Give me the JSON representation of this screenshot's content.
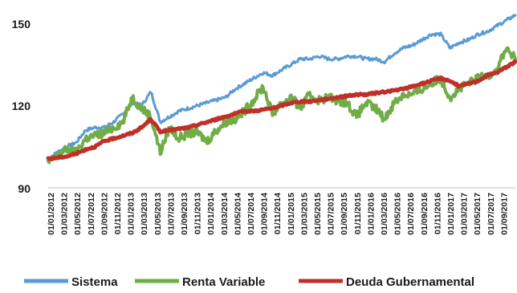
{
  "chart_data": {
    "type": "line",
    "title": "",
    "xlabel": "",
    "ylabel": "",
    "ylim": [
      90,
      150
    ],
    "y_ticks": [
      90,
      120,
      150
    ],
    "y_tick_labels": [
      "90",
      "120",
      "150"
    ],
    "grid": false,
    "legend_position": "bottom",
    "x_tick_labels": [
      "01/01/2012",
      "01/03/2012",
      "01/05/2012",
      "01/07/2012",
      "01/09/2012",
      "01/11/2012",
      "01/01/2013",
      "01/03/2013",
      "01/05/2013",
      "01/07/2013",
      "01/09/2013",
      "01/11/2013",
      "01/01/2014",
      "01/03/2014",
      "01/05/2014",
      "01/07/2014",
      "01/09/2014",
      "01/11/2014",
      "01/01/2015",
      "01/03/2015",
      "01/05/2015",
      "01/07/2015",
      "01/09/2015",
      "01/11/2015",
      "01/01/2016",
      "01/03/2016",
      "01/05/2016",
      "01/07/2016",
      "01/09/2016",
      "01/11/2016",
      "01/01/2017",
      "01/03/2017",
      "01/05/2017",
      "01/07/2017",
      "01/09/2017"
    ],
    "series": [
      {
        "name": "Sistema",
        "color": "#5b9bd5",
        "values": [
          100.5,
          103,
          105,
          106.5,
          111,
          112,
          112,
          114,
          117,
          121,
          120,
          125,
          114,
          116,
          118,
          119,
          120,
          121,
          122,
          123,
          126,
          128,
          130,
          132,
          131,
          133,
          135,
          137,
          137,
          138,
          137,
          137,
          138,
          138,
          137,
          137,
          136,
          139,
          141,
          142,
          144,
          146,
          146,
          141,
          143,
          144,
          146,
          147,
          149,
          151,
          153
        ]
      },
      {
        "name": "Renta Variable",
        "color": "#70ad47",
        "values": [
          99,
          102,
          104,
          103,
          108,
          109,
          110,
          112,
          114,
          123,
          119,
          116,
          103,
          112,
          108,
          110,
          110,
          107,
          111,
          114,
          115,
          118,
          122,
          127,
          117,
          121,
          123,
          119,
          124,
          122,
          123,
          122,
          121,
          116,
          121,
          119,
          115,
          121,
          124,
          124,
          126,
          128,
          130,
          123,
          126,
          128,
          130,
          131,
          133,
          141,
          137
        ]
      },
      {
        "name": "Deuda Gubernamental",
        "color": "#c0302a",
        "values": [
          100.5,
          101,
          101.5,
          102.5,
          104,
          105,
          107,
          108,
          109,
          110,
          112,
          115,
          110.5,
          111,
          111.5,
          112,
          113,
          114,
          115,
          116,
          117,
          118,
          118,
          118.5,
          119,
          120,
          121,
          121.5,
          121.5,
          122,
          122.5,
          123,
          123.5,
          124,
          124,
          124.5,
          125,
          125.5,
          126,
          127,
          128,
          129,
          130,
          129,
          127,
          128,
          129,
          131,
          132,
          134,
          136
        ]
      }
    ]
  }
}
